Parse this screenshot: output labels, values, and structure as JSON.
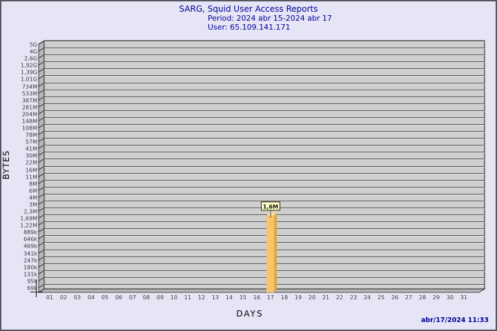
{
  "header": {
    "title": "SARG, Squid User Access Reports",
    "period_line": "Period: 2024 abr 15-2024 abr 17",
    "user_line": "User: 65.109.141.171"
  },
  "footer": {
    "timestamp": "abr/17/2024 11:33"
  },
  "chart_data": {
    "type": "bar",
    "title": "SARG, Squid User Access Reports",
    "subtitle": [
      "Period: 2024 abr 15-2024 abr 17",
      "User: 65.109.141.171"
    ],
    "xlabel": "DAYS",
    "ylabel": "BYTES",
    "scale": "log",
    "grid": true,
    "legend": null,
    "categories": [
      "01",
      "02",
      "03",
      "04",
      "05",
      "06",
      "07",
      "08",
      "09",
      "10",
      "11",
      "12",
      "13",
      "14",
      "15",
      "16",
      "17",
      "18",
      "19",
      "20",
      "21",
      "22",
      "23",
      "24",
      "25",
      "26",
      "27",
      "28",
      "29",
      "30",
      "31"
    ],
    "values": [
      0,
      0,
      0,
      0,
      0,
      0,
      0,
      0,
      0,
      0,
      0,
      0,
      0,
      0,
      0,
      0,
      1600000,
      0,
      0,
      0,
      0,
      0,
      0,
      0,
      0,
      0,
      0,
      0,
      0,
      0,
      0
    ],
    "value_labels": [
      "",
      "",
      "",
      "",
      "",
      "",
      "",
      "",
      "",
      "",
      "",
      "",
      "",
      "",
      "",
      "",
      "1,6M",
      "",
      "",
      "",
      "",
      "",
      "",
      "",
      "",
      "",
      "",
      "",
      "",
      "",
      ""
    ],
    "y_tick_labels": [
      "5G",
      "4G",
      "2,6G",
      "1,92G",
      "1,39G",
      "1,01G",
      "734M",
      "533M",
      "387M",
      "281M",
      "204M",
      "148M",
      "108M",
      "78M",
      "57M",
      "41M",
      "30M",
      "22M",
      "16M",
      "11M",
      "8M",
      "6M",
      "4M",
      "3M",
      "2,3M",
      "1,69M",
      "1,22M",
      "889k",
      "646k",
      "469k",
      "341k",
      "247k",
      "180k",
      "131k",
      "95k",
      "69k"
    ],
    "y_tick_values": [
      5000000000,
      4000000000,
      2600000000,
      1920000000,
      1390000000,
      1010000000,
      734000000,
      533000000,
      387000000,
      281000000,
      204000000,
      148000000,
      108000000,
      78000000,
      57000000,
      41000000,
      30000000,
      22000000,
      16000000,
      11000000,
      8000000,
      6000000,
      4000000,
      3000000,
      2300000,
      1690000,
      1220000,
      889000,
      646000,
      469000,
      341000,
      247000,
      180000,
      131000,
      95000,
      69000
    ],
    "colors": {
      "title_text": "#000099",
      "page_bg": "#E5E5F5",
      "page_border": "#54545E",
      "plot_bg": "#CFCFCF",
      "grid_dark": "#505050",
      "grid_light": "#E2E2E2",
      "wall": "#B8B8B8",
      "frame": "#1A1A1A",
      "tick_text": "#3A3A3A",
      "bar_front": "#FCC368",
      "bar_side": "#D9A94C",
      "bar_top": "#FFDA96",
      "annotation_bg": "#FFFFC8",
      "annotation_border": "#222200"
    }
  }
}
